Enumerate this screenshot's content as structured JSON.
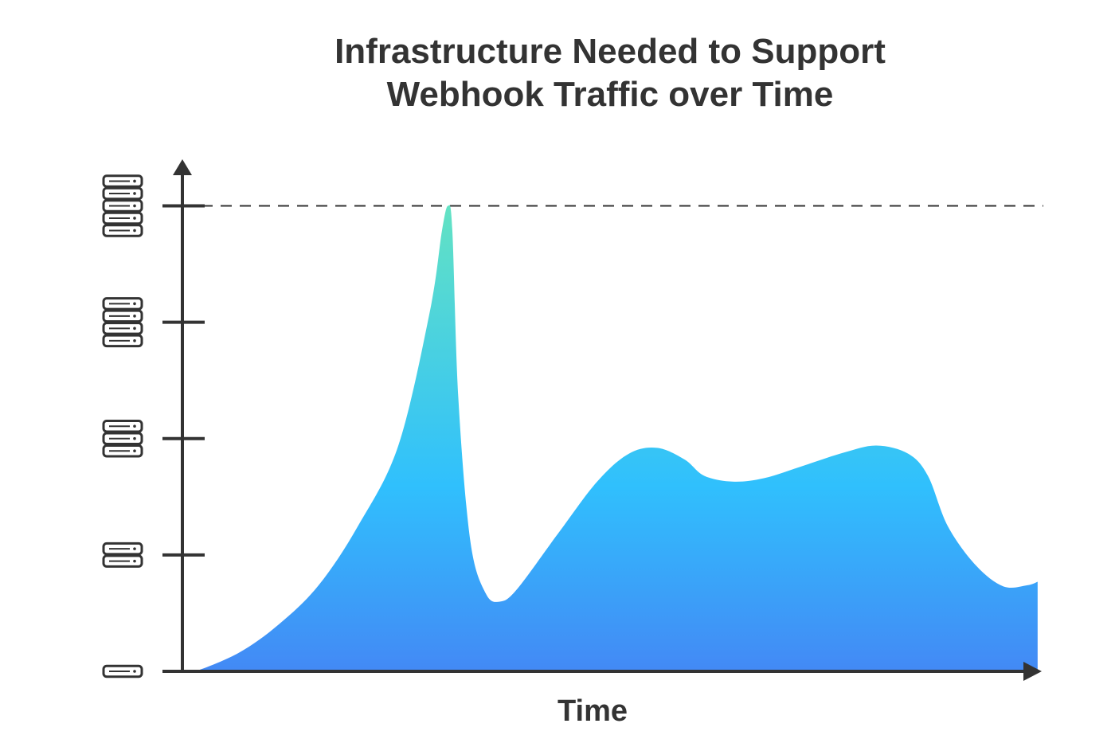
{
  "chart_data": {
    "type": "area",
    "title": "Infrastructure Needed to Support Webhook Traffic over Time",
    "x_label": "Time",
    "x": [
      0,
      1.5,
      6.6,
      11.2,
      15.9,
      20.5,
      25.2,
      28.9,
      30.3,
      31.0,
      31.5,
      32.2,
      33.6,
      35.4,
      37.1,
      39.1,
      43.8,
      48.4,
      52.1,
      55.4,
      58.6,
      60.9,
      64.2,
      67.9,
      72.6,
      77.2,
      81.0,
      84.7,
      87.0,
      89.3,
      92.6,
      95.8,
      98.6,
      99.8
    ],
    "values": [
      1.0,
      1.0,
      1.16,
      1.4,
      1.74,
      2.25,
      2.94,
      4.1,
      4.79,
      5.0,
      4.79,
      3.35,
      2.12,
      1.67,
      1.6,
      1.71,
      2.18,
      2.63,
      2.87,
      2.92,
      2.82,
      2.68,
      2.63,
      2.66,
      2.77,
      2.88,
      2.94,
      2.87,
      2.68,
      2.25,
      1.91,
      1.73,
      1.74,
      1.77
    ],
    "xlim": [
      0,
      100
    ],
    "ylim": [
      1,
      5.4
    ],
    "yticks": [
      1,
      2,
      3,
      4,
      5
    ],
    "threshold": 5,
    "colors": [
      "#63e2c3",
      "#30c0fd",
      "#4389f5"
    ]
  }
}
